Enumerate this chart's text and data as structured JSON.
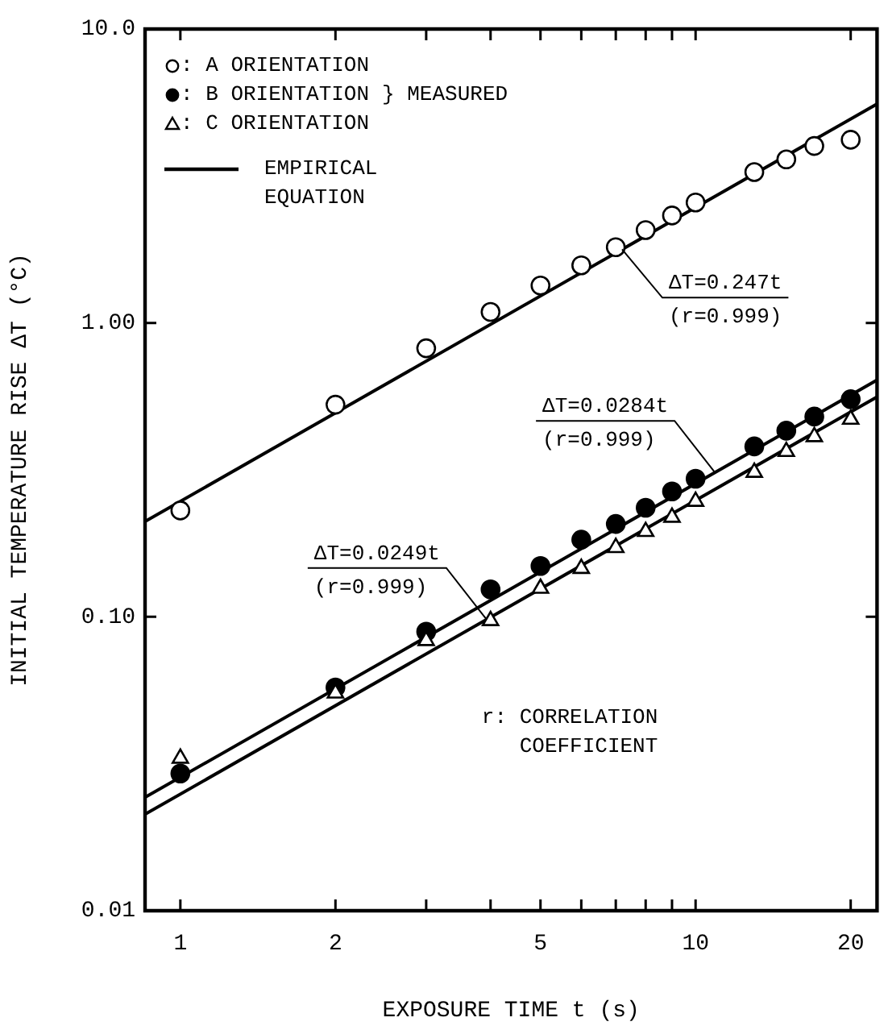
{
  "chart_data": {
    "type": "scatter",
    "xlabel": "EXPOSURE TIME t (s)",
    "ylabel": "INITIAL TEMPERATURE RISE ΔT (°C)",
    "log": "xy",
    "grid": false,
    "legend": "top left",
    "xlim": [
      0.854,
      22.5
    ],
    "ylim": [
      0.01,
      10
    ],
    "xticks": [
      1,
      2,
      {
        "value": 3,
        "label": null
      },
      {
        "value": 4,
        "label": null
      },
      5,
      {
        "value": 6,
        "label": null
      },
      {
        "value": 7,
        "label": null
      },
      {
        "value": 8,
        "label": null
      },
      {
        "value": 9,
        "label": null
      },
      10,
      20
    ],
    "yticks": [
      {
        "value": 0.01,
        "label": "0.01"
      },
      {
        "value": 0.1,
        "label": "0.10"
      },
      {
        "value": 1,
        "label": "1.00"
      },
      {
        "value": 10,
        "label": "10.0"
      }
    ],
    "series": [
      {
        "name": ": A ORIENTATION",
        "marker": "circle",
        "color": "#ffffff",
        "x": [
          1,
          2,
          3,
          4,
          5,
          6,
          7,
          8,
          9,
          10,
          13,
          15,
          17,
          20
        ],
        "values": [
          0.23,
          0.527,
          0.82,
          1.09,
          1.34,
          1.57,
          1.81,
          2.07,
          2.32,
          2.57,
          3.26,
          3.6,
          4.0,
          4.2
        ]
      },
      {
        "name": ": B ORIENTATION",
        "marker": "circle",
        "color": "#000000",
        "x": [
          1,
          2,
          3,
          4,
          5,
          6,
          7,
          8,
          9,
          10,
          13,
          15,
          17,
          20
        ],
        "values": [
          0.0293,
          0.0575,
          0.089,
          0.124,
          0.149,
          0.183,
          0.207,
          0.235,
          0.267,
          0.295,
          0.38,
          0.43,
          0.48,
          0.55
        ]
      },
      {
        "name": ": C ORIENTATION",
        "marker": "triangle",
        "color": "#ffffff",
        "x": [
          1,
          2,
          3,
          4,
          5,
          6,
          7,
          8,
          9,
          10,
          13,
          15,
          17,
          20
        ],
        "values": [
          0.033,
          0.055,
          0.083,
          0.097,
          0.125,
          0.146,
          0.172,
          0.195,
          0.218,
          0.247,
          0.31,
          0.365,
          0.41,
          0.47
        ]
      },
      {
        "name": "EMPIRICAL\nEQUATION",
        "type": "line",
        "marker": "none",
        "line_style": "solid",
        "color": "#000000",
        "x": [
          0.854,
          22.5
        ],
        "values": [
          0.211,
          5.56
        ]
      },
      {
        "type": "line",
        "marker": "none",
        "line_style": "solid",
        "color": "#000000",
        "x": [
          0.854,
          22.5
        ],
        "values": [
          0.0243,
          0.639
        ]
      },
      {
        "type": "line",
        "marker": "none",
        "line_style": "solid",
        "color": "#000000",
        "x": [
          0.854,
          22.5
        ],
        "values": [
          0.0213,
          0.56
        ]
      }
    ],
    "annotations": [
      "} MEASURED",
      "r: CORRELATION\nCOEFFICIENT",
      {
        "text": "ΔT=0.247t\n(r=0.999)",
        "x": 7.2,
        "y": 1.78
      },
      {
        "text": "ΔT=0.0284t\n(r=0.999)",
        "x": 10.9,
        "y": 0.31
      },
      {
        "text": "ΔT=0.0249t\n(r=0.999)",
        "x": 3.93,
        "y": 0.0979
      }
    ]
  }
}
